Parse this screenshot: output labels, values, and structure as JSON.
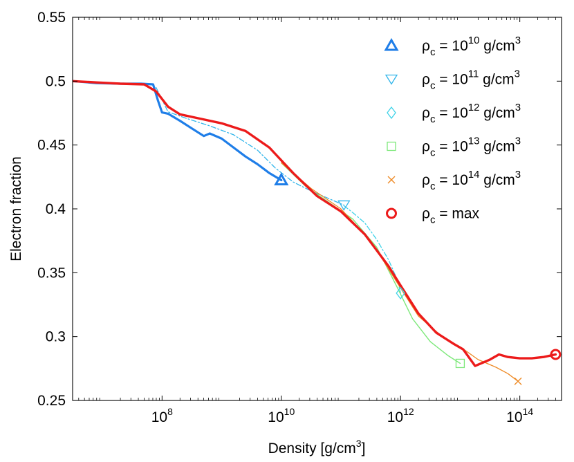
{
  "chart_data": {
    "type": "line",
    "title": "",
    "xlabel": "Density [g/cm",
    "xlabel_sup": "3",
    "xlabel_end": "]",
    "ylabel": "Electron fraction",
    "x_scale": "log",
    "xlim_log10": [
      6.5,
      14.7
    ],
    "ylim": [
      0.25,
      0.55
    ],
    "xticks": [
      {
        "exp": 8,
        "base": "10",
        "sup": "8"
      },
      {
        "exp": 10,
        "base": "10",
        "sup": "10"
      },
      {
        "exp": 12,
        "base": "10",
        "sup": "12"
      },
      {
        "exp": 14,
        "base": "10",
        "sup": "14"
      }
    ],
    "yticks": [
      {
        "value": 0.25,
        "label": "0.25"
      },
      {
        "value": 0.3,
        "label": "0.3"
      },
      {
        "value": 0.35,
        "label": "0.35"
      },
      {
        "value": 0.4,
        "label": "0.4"
      },
      {
        "value": 0.45,
        "label": "0.45"
      },
      {
        "value": 0.5,
        "label": "0.5"
      },
      {
        "value": 0.55,
        "label": "0.55"
      }
    ],
    "grid": false,
    "legend_position": "top-right",
    "series": [
      {
        "name": "rho_c = 10^10 g/cm^3",
        "legend": {
          "pre": "ρ",
          "sub": "c",
          "mid": " = 10",
          "sup": "10",
          "post": " g/cm",
          "sup2": "3"
        },
        "color": "#1f7ee8",
        "width": 3.2,
        "dash": "",
        "marker": "triangle-up",
        "points": [
          [
            6.5,
            0.5
          ],
          [
            6.9,
            0.4985
          ],
          [
            7.3,
            0.498
          ],
          [
            7.65,
            0.498
          ],
          [
            7.85,
            0.4975
          ],
          [
            7.93,
            0.485
          ],
          [
            8.0,
            0.4755
          ],
          [
            8.1,
            0.4745
          ],
          [
            8.3,
            0.469
          ],
          [
            8.5,
            0.463
          ],
          [
            8.7,
            0.457
          ],
          [
            8.8,
            0.459
          ],
          [
            9.0,
            0.455
          ],
          [
            9.2,
            0.448
          ],
          [
            9.4,
            0.441
          ],
          [
            9.6,
            0.435
          ],
          [
            9.8,
            0.428
          ],
          [
            10.0,
            0.4225
          ]
        ]
      },
      {
        "name": "rho_c = 10^11 g/cm^3",
        "legend": {
          "pre": "ρ",
          "sub": "c",
          "mid": " = 10",
          "sup": "11",
          "post": " g/cm",
          "sup2": "3"
        },
        "color": "#31b5ea",
        "width": 1.3,
        "dash": "7 3 2 3",
        "marker": "triangle-down",
        "points": [
          [
            7.9,
            0.495
          ],
          [
            8.1,
            0.476
          ],
          [
            8.4,
            0.471
          ],
          [
            8.8,
            0.465
          ],
          [
            9.2,
            0.458
          ],
          [
            9.6,
            0.446
          ],
          [
            9.9,
            0.432
          ],
          [
            10.2,
            0.421
          ],
          [
            10.5,
            0.414
          ],
          [
            10.8,
            0.408
          ],
          [
            11.05,
            0.403
          ]
        ]
      },
      {
        "name": "rho_c = 10^12 g/cm^3",
        "legend": {
          "pre": "ρ",
          "sub": "c",
          "mid": " = 10",
          "sup": "12",
          "post": " g/cm",
          "sup2": "3"
        },
        "color": "#3fd3e8",
        "width": 1.3,
        "dash": "7 3 2 3",
        "marker": "diamond",
        "points": [
          [
            11.05,
            0.4025
          ],
          [
            11.2,
            0.397
          ],
          [
            11.4,
            0.389
          ],
          [
            11.6,
            0.376
          ],
          [
            11.8,
            0.36
          ],
          [
            11.95,
            0.344
          ],
          [
            12.0,
            0.334
          ]
        ]
      },
      {
        "name": "rho_c = 10^13 g/cm^3",
        "legend": {
          "pre": "ρ",
          "sub": "c",
          "mid": " = 10",
          "sup": "13",
          "post": " g/cm",
          "sup2": "3"
        },
        "color": "#7de87a",
        "width": 1.4,
        "dash": "",
        "marker": "square",
        "points": [
          [
            10.0,
            0.436
          ],
          [
            10.4,
            0.418
          ],
          [
            10.8,
            0.405
          ],
          [
            11.2,
            0.392
          ],
          [
            11.6,
            0.37
          ],
          [
            11.95,
            0.338
          ],
          [
            12.2,
            0.314
          ],
          [
            12.5,
            0.296
          ],
          [
            12.8,
            0.285
          ],
          [
            13.0,
            0.279
          ]
        ]
      },
      {
        "name": "rho_c = 10^14 g/cm^3",
        "legend": {
          "pre": "ρ",
          "sub": "c",
          "mid": " = 10",
          "sup": "14",
          "post": " g/cm",
          "sup2": "3"
        },
        "color": "#ee8a25",
        "width": 1.3,
        "dash": "",
        "marker": "x",
        "points": [
          [
            10.0,
            0.436
          ],
          [
            10.5,
            0.416
          ],
          [
            11.0,
            0.4
          ],
          [
            11.5,
            0.375
          ],
          [
            12.0,
            0.338
          ],
          [
            12.3,
            0.316
          ],
          [
            12.7,
            0.3
          ],
          [
            13.0,
            0.292
          ],
          [
            13.3,
            0.282
          ],
          [
            13.6,
            0.276
          ],
          [
            13.8,
            0.271
          ],
          [
            13.97,
            0.265
          ]
        ]
      },
      {
        "name": "rho_c = max",
        "legend": {
          "pre": "ρ",
          "sub": "c",
          "mid": " = max",
          "sup": "",
          "post": "",
          "sup2": ""
        },
        "color": "#ec1b1b",
        "width": 3.4,
        "dash": "",
        "marker": "circle",
        "points": [
          [
            6.5,
            0.5
          ],
          [
            6.9,
            0.499
          ],
          [
            7.3,
            0.498
          ],
          [
            7.7,
            0.4975
          ],
          [
            7.9,
            0.492
          ],
          [
            8.1,
            0.48
          ],
          [
            8.3,
            0.474
          ],
          [
            8.6,
            0.471
          ],
          [
            9.0,
            0.467
          ],
          [
            9.4,
            0.461
          ],
          [
            9.8,
            0.448
          ],
          [
            10.2,
            0.428
          ],
          [
            10.6,
            0.41
          ],
          [
            11.0,
            0.398
          ],
          [
            11.4,
            0.38
          ],
          [
            11.8,
            0.355
          ],
          [
            12.0,
            0.34
          ],
          [
            12.3,
            0.318
          ],
          [
            12.6,
            0.303
          ],
          [
            12.9,
            0.294
          ],
          [
            13.05,
            0.29
          ],
          [
            13.25,
            0.277
          ],
          [
            13.35,
            0.279
          ],
          [
            13.5,
            0.282
          ],
          [
            13.65,
            0.286
          ],
          [
            13.8,
            0.284
          ],
          [
            14.0,
            0.283
          ],
          [
            14.2,
            0.283
          ],
          [
            14.4,
            0.284
          ],
          [
            14.6,
            0.286
          ]
        ]
      }
    ],
    "markers": [
      {
        "series": 0,
        "x": 10.0,
        "y": 0.4225
      },
      {
        "series": 1,
        "x": 11.05,
        "y": 0.403
      },
      {
        "series": 2,
        "x": 12.0,
        "y": 0.334
      },
      {
        "series": 3,
        "x": 13.0,
        "y": 0.279
      },
      {
        "series": 4,
        "x": 13.97,
        "y": 0.265
      },
      {
        "series": 5,
        "x": 14.6,
        "y": 0.286
      }
    ]
  }
}
